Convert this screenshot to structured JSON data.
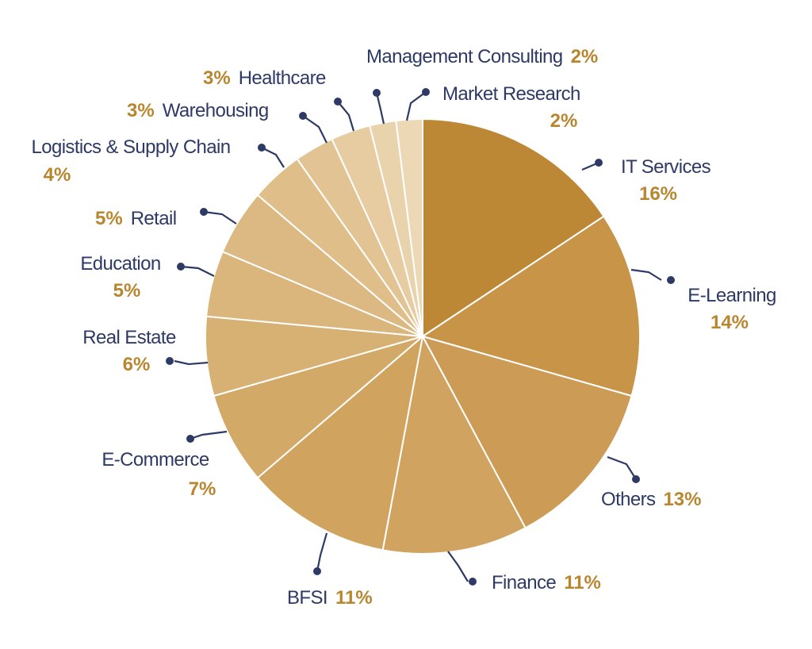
{
  "chart_data": {
    "type": "pie",
    "title": "",
    "start_angle_deg": 0,
    "direction": "clockwise",
    "slices": [
      {
        "label": "IT Services",
        "value": 16,
        "value_label": "16%",
        "color": "#bd8836"
      },
      {
        "label": "E-Learning",
        "value": 14,
        "value_label": "14%",
        "color": "#c89448"
      },
      {
        "label": "Others",
        "value": 13,
        "value_label": "13%",
        "color": "#cc9b55"
      },
      {
        "label": "Finance",
        "value": 11,
        "value_label": "11%",
        "color": "#d0a360"
      },
      {
        "label": "BFSI",
        "value": 11,
        "value_label": "11%",
        "color": "#d0a35f"
      },
      {
        "label": "E-Commerce",
        "value": 7,
        "value_label": "7%",
        "color": "#d3a968"
      },
      {
        "label": "Real Estate",
        "value": 6,
        "value_label": "6%",
        "color": "#d7b073"
      },
      {
        "label": "Education",
        "value": 5,
        "value_label": "5%",
        "color": "#dab57c"
      },
      {
        "label": "Retail",
        "value": 5,
        "value_label": "5%",
        "color": "#dcb982"
      },
      {
        "label": "Logistics & Supply Chain",
        "value": 4,
        "value_label": "4%",
        "color": "#dfbe8a"
      },
      {
        "label": "Warehousing",
        "value": 3,
        "value_label": "3%",
        "color": "#e2c494"
      },
      {
        "label": "Healthcare",
        "value": 3,
        "value_label": "3%",
        "color": "#e6cca0"
      },
      {
        "label": "Management Consulting",
        "value": 2,
        "value_label": "2%",
        "color": "#e9d3ad"
      },
      {
        "label": "Market Research",
        "value": 2,
        "value_label": "2%",
        "color": "#ecd8b5"
      }
    ]
  }
}
